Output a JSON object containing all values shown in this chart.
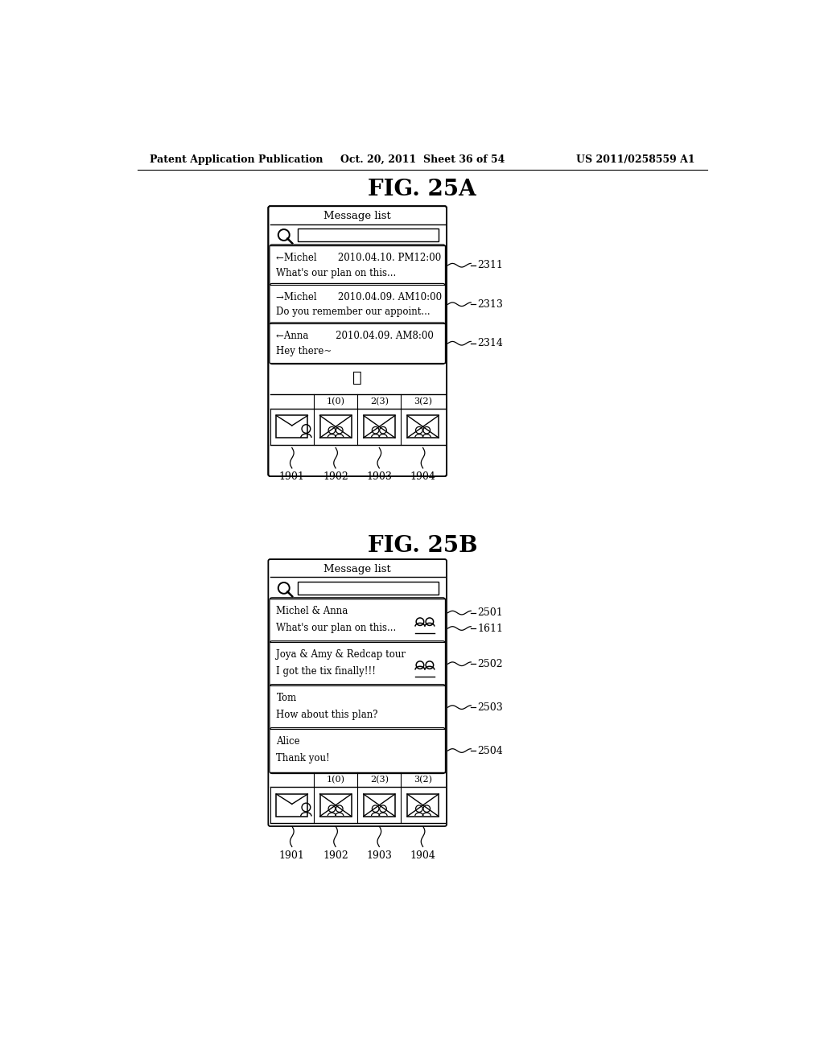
{
  "bg_color": "#ffffff",
  "header_text_left": "Patent Application Publication",
  "header_text_mid": "Oct. 20, 2011  Sheet 36 of 54",
  "header_text_right": "US 2011/0258559 A1",
  "fig25a_title": "FIG. 25A",
  "fig25b_title": "FIG. 25B",
  "fig25a": {
    "title": "Message list",
    "rows": [
      {
        "line1": "←Michel       2010.04.10. PM12:00",
        "line2": "What's our plan on this...",
        "label": "2311"
      },
      {
        "line1": "→Michel       2010.04.09. AM10:00",
        "line2": "Do you remember our appoint...",
        "label": "2313"
      },
      {
        "line1": "←Anna         2010.04.09. AM8:00",
        "line2": "Hey there~",
        "label": "2314"
      }
    ],
    "tab_labels": [
      "1(0)",
      "2(3)",
      "3(2)"
    ],
    "bottom_labels": [
      "1901",
      "1902",
      "1903",
      "1904"
    ]
  },
  "fig25b": {
    "title": "Message list",
    "rows": [
      {
        "line1": "Michel & Anna",
        "line2": "What's our plan on this...",
        "label": "2501",
        "label2": "1611",
        "has_icon": true
      },
      {
        "line1": "Joya & Amy & Redcap tour",
        "line2": "I got the tix finally!!!",
        "label": "2502",
        "has_icon": true
      },
      {
        "line1": "Tom",
        "line2": "How about this plan?",
        "label": "2503",
        "has_icon": false
      },
      {
        "line1": "Alice",
        "line2": "Thank you!",
        "label": "2504",
        "has_icon": false
      }
    ],
    "tab_labels": [
      "1(0)",
      "2(3)",
      "3(2)"
    ],
    "bottom_labels": [
      "1901",
      "1902",
      "1903",
      "1904"
    ]
  }
}
